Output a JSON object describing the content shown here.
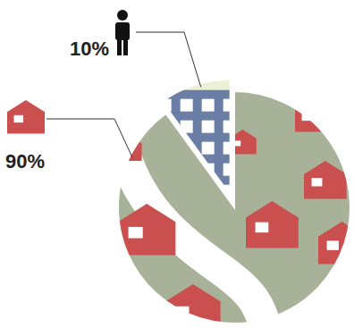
{
  "chart_data": {
    "type": "pie",
    "values": [
      90,
      10
    ],
    "value_labels": [
      "90%",
      "10%"
    ],
    "colors": [
      "#c9504f",
      "#6b7fa6"
    ],
    "data_labels": true
  }
}
